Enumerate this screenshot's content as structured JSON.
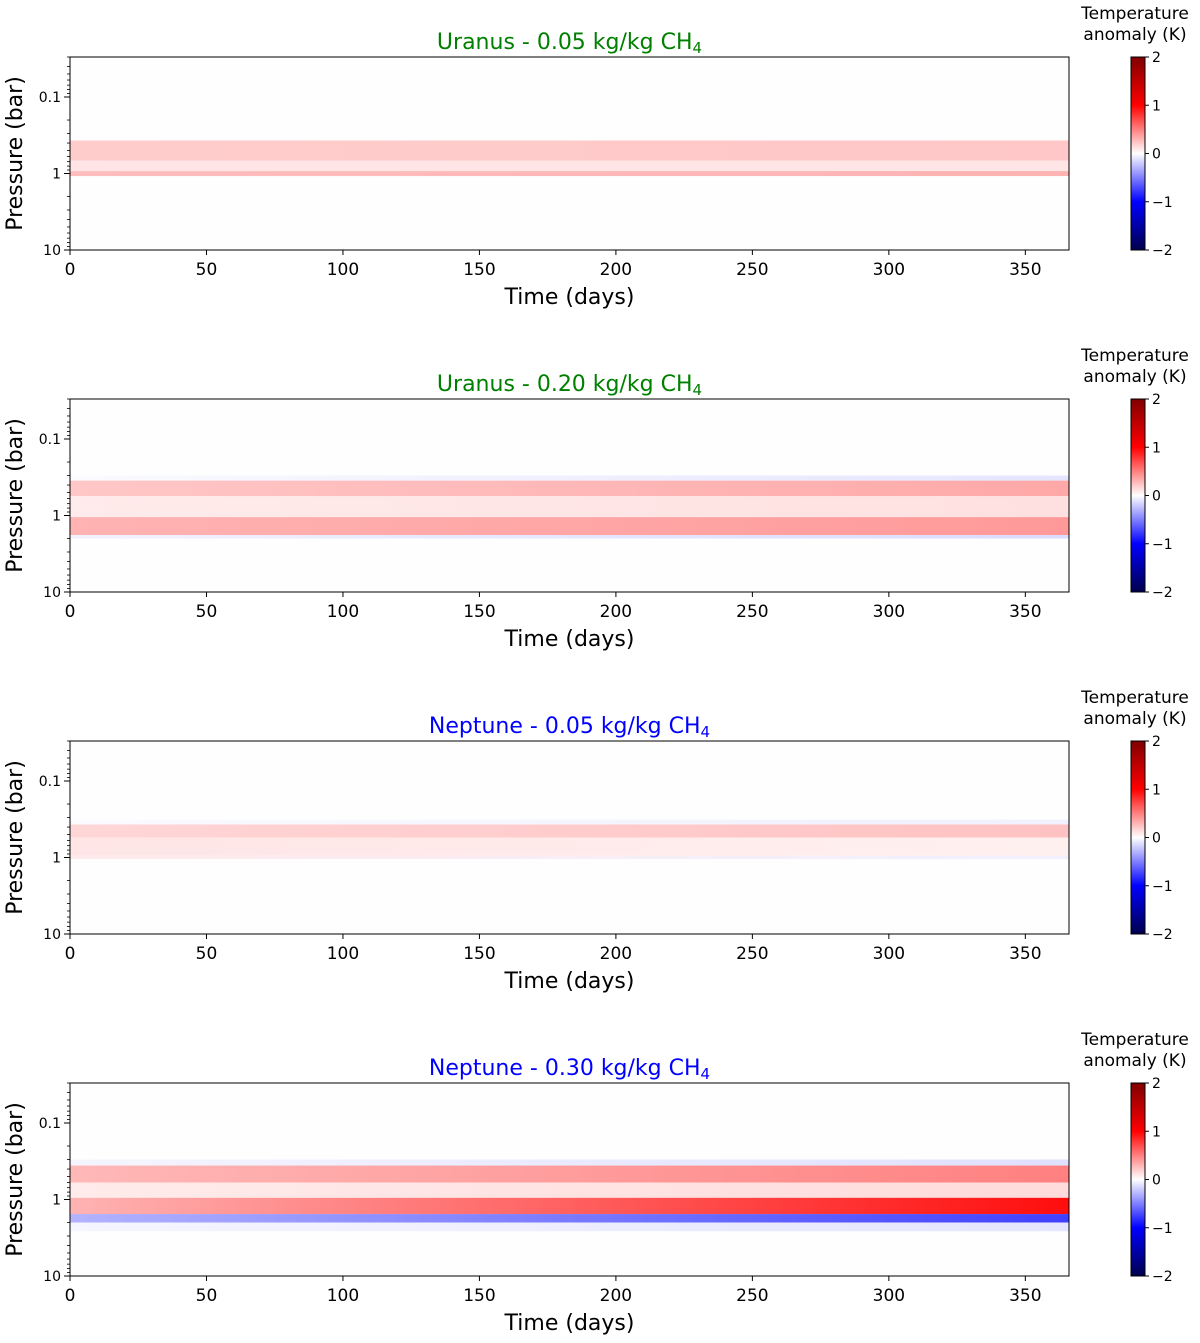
{
  "figure": {
    "colorbar_label_line1": "Temperature",
    "colorbar_label_line2": "anomaly (K)"
  },
  "chart_data": [
    {
      "type": "heatmap",
      "title_main": "Uranus - 0.05 kg/kg CH",
      "title_sub": "4",
      "title_color": "#008000",
      "xlabel": "Time (days)",
      "ylabel": "Pressure (bar)",
      "xlim": [
        0,
        366
      ],
      "ylim": [
        10,
        0.03
      ],
      "yscale": "log",
      "x_ticks": [
        0,
        50,
        100,
        150,
        200,
        250,
        300,
        350
      ],
      "y_ticks": [
        0.1,
        1,
        10
      ],
      "y_tick_labels": [
        "0.1",
        "1",
        "10"
      ],
      "colorbar": {
        "min": -2,
        "max": 2,
        "ticks": [
          2,
          1,
          0,
          -1,
          -2
        ],
        "tick_labels": [
          "2",
          "1",
          "0",
          "−1",
          "−2"
        ],
        "colormap": "seismic"
      },
      "bands": [
        {
          "p_top": 0.37,
          "p_bottom": 0.68,
          "anomaly_start": 0.2,
          "anomaly_end": 0.22
        },
        {
          "p_top": 0.68,
          "p_bottom": 0.93,
          "anomaly_start": 0.1,
          "anomaly_end": 0.1
        },
        {
          "p_top": 0.93,
          "p_bottom": 1.08,
          "anomaly_start": 0.26,
          "anomaly_end": 0.3
        }
      ]
    },
    {
      "type": "heatmap",
      "title_main": "Uranus - 0.20 kg/kg CH",
      "title_sub": "4",
      "title_color": "#008000",
      "xlabel": "Time (days)",
      "ylabel": "Pressure (bar)",
      "xlim": [
        0,
        366
      ],
      "ylim": [
        10,
        0.03
      ],
      "yscale": "log",
      "x_ticks": [
        0,
        50,
        100,
        150,
        200,
        250,
        300,
        350
      ],
      "y_ticks": [
        0.1,
        1,
        10
      ],
      "y_tick_labels": [
        "0.1",
        "1",
        "10"
      ],
      "colorbar": {
        "min": -2,
        "max": 2,
        "ticks": [
          2,
          1,
          0,
          -1,
          -2
        ],
        "tick_labels": [
          "2",
          "1",
          "0",
          "−1",
          "−2"
        ],
        "colormap": "seismic"
      },
      "bands": [
        {
          "p_top": 0.3,
          "p_bottom": 0.35,
          "anomaly_start": -0.02,
          "anomaly_end": -0.1
        },
        {
          "p_top": 0.35,
          "p_bottom": 0.56,
          "anomaly_start": 0.22,
          "anomaly_end": 0.34
        },
        {
          "p_top": 0.56,
          "p_bottom": 1.05,
          "anomaly_start": 0.08,
          "anomaly_end": 0.12
        },
        {
          "p_top": 1.05,
          "p_bottom": 1.8,
          "anomaly_start": 0.3,
          "anomaly_end": 0.4
        },
        {
          "p_top": 1.8,
          "p_bottom": 2.0,
          "anomaly_start": -0.05,
          "anomaly_end": -0.14
        }
      ]
    },
    {
      "type": "heatmap",
      "title_main": "Neptune - 0.05 kg/kg CH",
      "title_sub": "4",
      "title_color": "#0000ff",
      "xlabel": "Time (days)",
      "ylabel": "Pressure (bar)",
      "xlim": [
        0,
        366
      ],
      "ylim": [
        10,
        0.03
      ],
      "yscale": "log",
      "x_ticks": [
        0,
        50,
        100,
        150,
        200,
        250,
        300,
        350
      ],
      "y_ticks": [
        0.1,
        1,
        10
      ],
      "y_tick_labels": [
        "0.1",
        "1",
        "10"
      ],
      "colorbar": {
        "min": -2,
        "max": 2,
        "ticks": [
          2,
          1,
          0,
          -1,
          -2
        ],
        "tick_labels": [
          "2",
          "1",
          "0",
          "−1",
          "−2"
        ],
        "colormap": "seismic"
      },
      "bands": [
        {
          "p_top": 0.32,
          "p_bottom": 0.37,
          "anomaly_start": -0.02,
          "anomaly_end": -0.06
        },
        {
          "p_top": 0.37,
          "p_bottom": 0.55,
          "anomaly_start": 0.16,
          "anomaly_end": 0.24
        },
        {
          "p_top": 0.55,
          "p_bottom": 0.95,
          "anomaly_start": 0.1,
          "anomaly_end": 0.06
        },
        {
          "p_top": 0.95,
          "p_bottom": 1.05,
          "anomaly_start": 0.08,
          "anomaly_end": -0.06
        }
      ]
    },
    {
      "type": "heatmap",
      "title_main": "Neptune - 0.30 kg/kg CH",
      "title_sub": "4",
      "title_color": "#0000ff",
      "xlabel": "Time (days)",
      "ylabel": "Pressure (bar)",
      "xlim": [
        0,
        366
      ],
      "ylim": [
        10,
        0.03
      ],
      "yscale": "log",
      "x_ticks": [
        0,
        50,
        100,
        150,
        200,
        250,
        300,
        350
      ],
      "y_ticks": [
        0.1,
        1,
        10
      ],
      "y_tick_labels": [
        "0.1",
        "1",
        "10"
      ],
      "colorbar": {
        "min": -2,
        "max": 2,
        "ticks": [
          2,
          1,
          0,
          -1,
          -2
        ],
        "tick_labels": [
          "2",
          "1",
          "0",
          "−1",
          "−2"
        ],
        "colormap": "seismic"
      },
      "bands": [
        {
          "p_top": 0.3,
          "p_bottom": 0.36,
          "anomaly_start": -0.04,
          "anomaly_end": -0.12
        },
        {
          "p_top": 0.36,
          "p_bottom": 0.6,
          "anomaly_start": 0.28,
          "anomaly_end": 0.5
        },
        {
          "p_top": 0.6,
          "p_bottom": 0.95,
          "anomaly_start": 0.08,
          "anomaly_end": 0.14
        },
        {
          "p_top": 0.95,
          "p_bottom": 1.55,
          "anomaly_start": 0.3,
          "anomaly_end": 0.95
        },
        {
          "p_top": 1.55,
          "p_bottom": 2.0,
          "anomaly_start": -0.3,
          "anomaly_end": -0.75
        },
        {
          "p_top": 2.0,
          "p_bottom": 2.6,
          "anomaly_start": -0.04,
          "anomaly_end": -0.1
        }
      ]
    }
  ]
}
